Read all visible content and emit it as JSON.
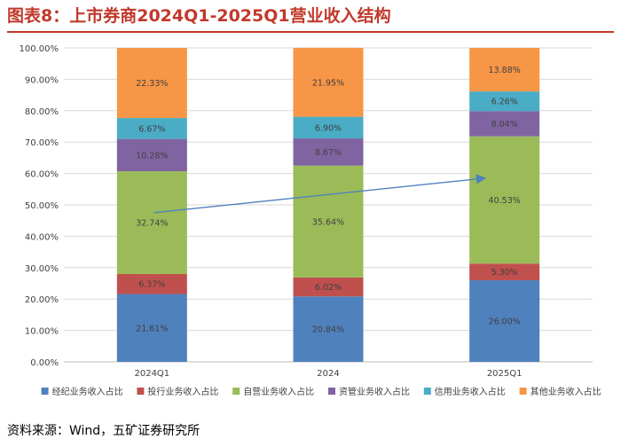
{
  "header": {
    "title": "图表8：上市券商2024Q1-2025Q1营业收入结构"
  },
  "footer": {
    "source": "资料来源：Wind，五矿证券研究所"
  },
  "chart_data": {
    "type": "bar",
    "stacked": true,
    "categories": [
      "2024Q1",
      "2024",
      "2025Q1"
    ],
    "ylim": [
      0,
      100
    ],
    "yticks": [
      "0.00%",
      "10.00%",
      "20.00%",
      "30.00%",
      "40.00%",
      "50.00%",
      "60.00%",
      "70.00%",
      "80.00%",
      "90.00%",
      "100.00%"
    ],
    "grid": true,
    "legend_position": "bottom",
    "annotation": "arrow pointing up-right across the 自营 (proprietary) segment from 2024Q1 to 2025Q1",
    "series": [
      {
        "name": "经纪业务收入占比",
        "color": "#4f81bd",
        "values": [
          21.61,
          20.84,
          26.0
        ],
        "labels": [
          "21.61%",
          "20.84%",
          "26.00%"
        ]
      },
      {
        "name": "投行业务收入占比",
        "color": "#c0504d",
        "values": [
          6.37,
          6.02,
          5.3
        ],
        "labels": [
          "6.37%",
          "6.02%",
          "5.30%"
        ]
      },
      {
        "name": "自营业务收入占比",
        "color": "#9bbb59",
        "values": [
          32.74,
          35.64,
          40.53
        ],
        "labels": [
          "32.74%",
          "35.64%",
          "40.53%"
        ]
      },
      {
        "name": "资管业务收入占比",
        "color": "#8064a2",
        "values": [
          10.28,
          8.67,
          8.04
        ],
        "labels": [
          "10.28%",
          "8.67%",
          "8.04%"
        ]
      },
      {
        "name": "信用业务收入占比",
        "color": "#4bacc6",
        "values": [
          6.67,
          6.9,
          6.26
        ],
        "labels": [
          "6.67%",
          "6.90%",
          "6.26%"
        ]
      },
      {
        "name": "其他业务收入占比",
        "color": "#f79646",
        "values": [
          22.33,
          21.95,
          13.88
        ],
        "labels": [
          "22.33%",
          "21.95%",
          "13.88%"
        ]
      }
    ]
  }
}
